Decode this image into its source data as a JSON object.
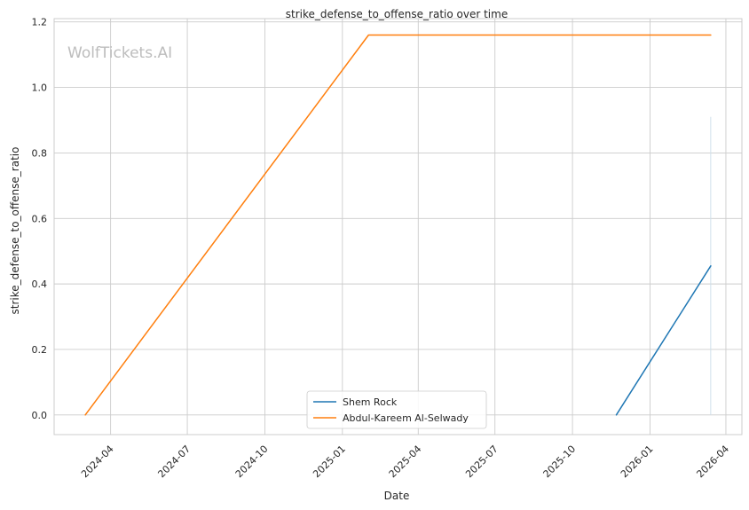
{
  "chart_data": {
    "type": "line",
    "title": "strike_defense_to_offense_ratio over time",
    "xlabel": "Date",
    "ylabel": "strike_defense_to_offense_ratio",
    "watermark": "WolfTickets.AI",
    "x_range": [
      "2024-01-25",
      "2026-04-20"
    ],
    "ylim": [
      -0.06,
      1.21
    ],
    "x_ticks": [
      "2024-04",
      "2024-07",
      "2024-10",
      "2025-01",
      "2025-04",
      "2025-07",
      "2025-10",
      "2026-01",
      "2026-04"
    ],
    "y_ticks": [
      "0.0",
      "0.2",
      "0.4",
      "0.6",
      "0.8",
      "1.0",
      "1.2"
    ],
    "grid": true,
    "legend_position": "bottom-center",
    "series": [
      {
        "name": "Shem Rock",
        "color": "#1f77b4",
        "points": [
          {
            "x": "2025-11-22",
            "y": 0.0
          },
          {
            "x": "2026-03-14",
            "y": 0.455
          }
        ]
      },
      {
        "name": "Abdul-Kareem Al-Selwady",
        "color": "#ff7f0e",
        "points": [
          {
            "x": "2024-03-02",
            "y": 0.0
          },
          {
            "x": "2025-02-01",
            "y": 1.16
          },
          {
            "x": "2026-03-14",
            "y": 1.16
          }
        ]
      }
    ],
    "annotations": [
      {
        "type": "vertical-line",
        "x": "2026-03-14",
        "y_from": 0.0,
        "y_to": 0.91,
        "color": "#cfe0ea"
      }
    ]
  }
}
